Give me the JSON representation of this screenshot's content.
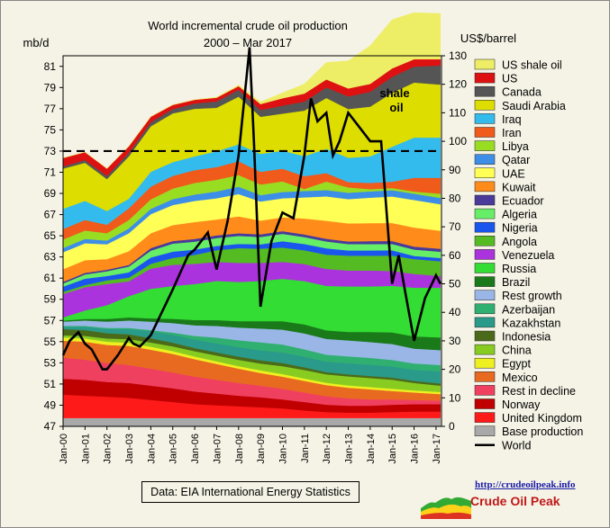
{
  "chart_data": {
    "type": "area",
    "title": "World incremental crude oil production",
    "subtitle": "2000 – Mar 2017",
    "ylabel": "mb/d",
    "y2label": "US$/barrel",
    "ylim": [
      47,
      82
    ],
    "y2lim": [
      0,
      130
    ],
    "yticks": [
      47,
      49,
      51,
      53,
      55,
      57,
      59,
      61,
      63,
      65,
      67,
      69,
      71,
      73,
      75,
      77,
      79,
      81
    ],
    "y2ticks": [
      0,
      10,
      20,
      30,
      40,
      50,
      60,
      70,
      80,
      90,
      100,
      110,
      120,
      130
    ],
    "xticks": [
      "Jan-00",
      "Jan-01",
      "Jan-02",
      "Jan-03",
      "Jan-04",
      "Jan-05",
      "Jan-06",
      "Jan-07",
      "Jan-08",
      "Jan-09",
      "Jan-10",
      "Jan-11",
      "Jan-12",
      "Jan-13",
      "Jan-14",
      "Jan-15",
      "Jan-16",
      "Jan-17"
    ],
    "reference_line": {
      "value": 73,
      "style": "dashed"
    },
    "annotation": {
      "text_line1": "shale",
      "text_line2": "oil"
    },
    "source": "Data: EIA International Energy Statistics",
    "years": [
      2000,
      2001,
      2002,
      2003,
      2004,
      2005,
      2006,
      2007,
      2008,
      2009,
      2010,
      2011,
      2012,
      2013,
      2014,
      2015,
      2016,
      2017.2
    ],
    "series": [
      {
        "name": "Base production",
        "color": "#a9a9a9",
        "values": [
          47.8,
          47.8,
          47.8,
          47.8,
          47.8,
          47.8,
          47.8,
          47.8,
          47.8,
          47.8,
          47.8,
          47.8,
          47.8,
          47.8,
          47.8,
          47.8,
          47.8,
          47.8
        ]
      },
      {
        "name": "United Kingdom",
        "color": "#ff1a1a",
        "values": [
          2.2,
          2.1,
          2.0,
          1.9,
          1.7,
          1.5,
          1.3,
          1.2,
          1.1,
          1.0,
          0.9,
          0.7,
          0.55,
          0.5,
          0.5,
          0.55,
          0.6,
          0.6
        ]
      },
      {
        "name": "Norway",
        "color": "#c00000",
        "values": [
          1.5,
          1.5,
          1.4,
          1.4,
          1.35,
          1.3,
          1.2,
          1.1,
          1.0,
          0.95,
          0.85,
          0.8,
          0.7,
          0.65,
          0.65,
          0.7,
          0.7,
          0.7
        ]
      },
      {
        "name": "Rest in decline",
        "color": "#f04060",
        "values": [
          2.0,
          1.9,
          1.8,
          1.7,
          1.6,
          1.5,
          1.4,
          1.3,
          1.2,
          1.1,
          1.0,
          0.9,
          0.8,
          0.7,
          0.6,
          0.5,
          0.4,
          0.35
        ]
      },
      {
        "name": "Mexico",
        "color": "#e86a20",
        "values": [
          1.6,
          1.7,
          1.7,
          1.8,
          1.8,
          1.75,
          1.65,
          1.5,
          1.35,
          1.2,
          1.15,
          1.1,
          1.05,
          1.0,
          0.95,
          0.8,
          0.7,
          0.6
        ]
      },
      {
        "name": "Egypt",
        "color": "#eef020",
        "values": [
          0.3,
          0.3,
          0.3,
          0.3,
          0.28,
          0.26,
          0.25,
          0.24,
          0.24,
          0.24,
          0.24,
          0.23,
          0.22,
          0.22,
          0.22,
          0.21,
          0.2,
          0.2
        ]
      },
      {
        "name": "China",
        "color": "#88cc22",
        "values": [
          0.2,
          0.25,
          0.3,
          0.35,
          0.4,
          0.45,
          0.5,
          0.55,
          0.6,
          0.65,
          0.75,
          0.8,
          0.8,
          0.85,
          0.85,
          0.85,
          0.7,
          0.6
        ]
      },
      {
        "name": "Indonesia",
        "color": "#4a6a1a",
        "values": [
          0.6,
          0.55,
          0.5,
          0.45,
          0.4,
          0.35,
          0.3,
          0.3,
          0.3,
          0.3,
          0.3,
          0.25,
          0.2,
          0.2,
          0.2,
          0.2,
          0.2,
          0.2
        ]
      },
      {
        "name": "Kazakhstan",
        "color": "#2a9a8a",
        "values": [
          0.2,
          0.3,
          0.4,
          0.5,
          0.65,
          0.75,
          0.8,
          0.85,
          0.9,
          0.95,
          1.0,
          1.0,
          1.0,
          1.05,
          1.05,
          1.05,
          1.05,
          1.15
        ]
      },
      {
        "name": "Azerbaijan",
        "color": "#30b070",
        "values": [
          0.1,
          0.1,
          0.1,
          0.1,
          0.12,
          0.2,
          0.35,
          0.55,
          0.65,
          0.75,
          0.75,
          0.7,
          0.65,
          0.65,
          0.65,
          0.62,
          0.6,
          0.6
        ]
      },
      {
        "name": "Rest growth",
        "color": "#9ab6e6",
        "values": [
          0.4,
          0.5,
          0.6,
          0.7,
          0.8,
          0.9,
          1.0,
          1.1,
          1.2,
          1.3,
          1.4,
          1.5,
          1.5,
          1.5,
          1.5,
          1.5,
          1.4,
          1.4
        ]
      },
      {
        "name": "Brazil",
        "color": "#1a7a1a",
        "values": [
          0.1,
          0.15,
          0.25,
          0.3,
          0.3,
          0.4,
          0.5,
          0.55,
          0.6,
          0.7,
          0.8,
          0.85,
          0.8,
          0.8,
          0.95,
          1.1,
          1.15,
          1.2
        ]
      },
      {
        "name": "Russia",
        "color": "#33dd33",
        "values": [
          0.3,
          0.8,
          1.3,
          2.0,
          2.8,
          3.1,
          3.4,
          3.7,
          3.7,
          3.8,
          4.0,
          4.1,
          4.2,
          4.3,
          4.3,
          4.4,
          4.6,
          4.7
        ]
      },
      {
        "name": "Venezuela",
        "color": "#aa33dd",
        "values": [
          2.2,
          2.2,
          2.0,
          1.4,
          1.9,
          2.0,
          1.9,
          1.8,
          1.8,
          1.7,
          1.6,
          1.6,
          1.6,
          1.5,
          1.5,
          1.4,
          1.3,
          1.1
        ]
      },
      {
        "name": "Angola",
        "color": "#55bb22",
        "values": [
          0.2,
          0.2,
          0.35,
          0.35,
          0.45,
          0.65,
          0.85,
          1.1,
          1.4,
          1.35,
          1.35,
          1.3,
          1.35,
          1.4,
          1.4,
          1.45,
          1.4,
          1.4
        ]
      },
      {
        "name": "Nigeria",
        "color": "#1a56ee",
        "values": [
          0.5,
          0.6,
          0.4,
          0.5,
          0.6,
          0.6,
          0.5,
          0.4,
          0.4,
          0.4,
          0.6,
          0.6,
          0.6,
          0.5,
          0.5,
          0.5,
          0.3,
          0.3
        ]
      },
      {
        "name": "Algeria",
        "color": "#66ee66",
        "values": [
          0.3,
          0.4,
          0.45,
          0.55,
          0.65,
          0.75,
          0.75,
          0.75,
          0.75,
          0.7,
          0.7,
          0.65,
          0.65,
          0.6,
          0.6,
          0.6,
          0.6,
          0.6
        ]
      },
      {
        "name": "Ecuador",
        "color": "#4a3a9a",
        "values": [
          0.15,
          0.15,
          0.15,
          0.15,
          0.25,
          0.25,
          0.25,
          0.25,
          0.25,
          0.25,
          0.25,
          0.25,
          0.25,
          0.25,
          0.28,
          0.28,
          0.28,
          0.28
        ]
      },
      {
        "name": "Kuwait",
        "color": "#ff8c1a",
        "values": [
          1.2,
          1.2,
          1.0,
          1.3,
          1.4,
          1.5,
          1.6,
          1.5,
          1.6,
          1.3,
          1.3,
          1.5,
          1.7,
          1.7,
          1.7,
          1.7,
          1.8,
          1.7
        ]
      },
      {
        "name": "UAE",
        "color": "#ffff55",
        "values": [
          1.6,
          1.6,
          1.4,
          1.7,
          1.8,
          1.9,
          2.0,
          2.0,
          2.1,
          1.8,
          1.8,
          2.0,
          2.3,
          2.3,
          2.4,
          2.5,
          2.6,
          2.5
        ]
      },
      {
        "name": "Qatar",
        "color": "#3d8ee6",
        "values": [
          0.4,
          0.4,
          0.35,
          0.45,
          0.5,
          0.55,
          0.6,
          0.65,
          0.7,
          0.6,
          0.6,
          0.6,
          0.6,
          0.6,
          0.6,
          0.6,
          0.6,
          0.6
        ]
      },
      {
        "name": "Libya",
        "color": "#99dd22",
        "values": [
          0.8,
          0.8,
          0.7,
          0.8,
          0.9,
          1.0,
          1.1,
          1.1,
          1.1,
          1.0,
          1.0,
          0.2,
          0.8,
          0.5,
          0.2,
          0.2,
          0.2,
          0.4
        ]
      },
      {
        "name": "Iran",
        "color": "#f05a1a",
        "values": [
          1.0,
          1.0,
          0.8,
          1.1,
          1.2,
          1.2,
          1.2,
          1.2,
          1.3,
          1.2,
          1.2,
          1.2,
          0.8,
          0.5,
          0.6,
          0.6,
          1.3,
          1.5
        ]
      },
      {
        "name": "Iraq",
        "color": "#33bbee",
        "values": [
          1.9,
          1.8,
          1.3,
          0.9,
          1.4,
          1.3,
          1.3,
          1.5,
          1.6,
          1.7,
          1.7,
          1.9,
          2.3,
          2.3,
          2.5,
          3.3,
          3.8,
          3.8
        ]
      },
      {
        "name": "Saudi Arabia",
        "color": "#dddd00",
        "values": [
          3.8,
          3.6,
          3.0,
          4.0,
          4.3,
          4.6,
          4.5,
          4.1,
          4.5,
          3.5,
          3.5,
          4.3,
          4.8,
          4.6,
          4.7,
          5.1,
          5.2,
          5.0
        ]
      },
      {
        "name": "Canada",
        "color": "#555555",
        "values": [
          0.2,
          0.25,
          0.3,
          0.35,
          0.4,
          0.4,
          0.5,
          0.6,
          0.65,
          0.65,
          0.75,
          0.85,
          1.0,
          1.2,
          1.4,
          1.5,
          1.5,
          1.8
        ]
      },
      {
        "name": "US",
        "color": "#dd1111",
        "values": [
          0.8,
          0.75,
          0.7,
          0.6,
          0.5,
          0.4,
          0.35,
          0.35,
          0.35,
          0.55,
          0.7,
          0.75,
          0.75,
          0.75,
          0.75,
          0.8,
          0.7,
          0.6
        ]
      },
      {
        "name": "US shale oil",
        "color": "#eeee66",
        "values": [
          0,
          0,
          0,
          0,
          0,
          0,
          0,
          0.05,
          0.1,
          0.2,
          0.5,
          0.9,
          1.6,
          2.6,
          3.6,
          4.6,
          4.4,
          4.3
        ]
      }
    ],
    "world_price": {
      "name": "World",
      "color": "#000000",
      "x": [
        2000,
        2000.3,
        2000.7,
        2001,
        2001.3,
        2001.8,
        2002,
        2002.5,
        2003,
        2003.2,
        2003.5,
        2004,
        2004.5,
        2005,
        2005.7,
        2006,
        2006.6,
        2007,
        2007.5,
        2008,
        2008.5,
        2008.7,
        2009,
        2009.5,
        2010,
        2010.5,
        2011,
        2011.3,
        2011.6,
        2012,
        2012.3,
        2012.6,
        2013,
        2013.5,
        2014,
        2014.5,
        2015,
        2015.3,
        2015.6,
        2016,
        2016.5,
        2017,
        2017.2
      ],
      "y": [
        25,
        30,
        33,
        29,
        27,
        20,
        20,
        25,
        31,
        29,
        28,
        32,
        40,
        48,
        60,
        62,
        68,
        55,
        72,
        95,
        133,
        100,
        42,
        65,
        75,
        73,
        95,
        115,
        107,
        110,
        95,
        100,
        110,
        105,
        100,
        100,
        50,
        60,
        47,
        30,
        45,
        53,
        50
      ]
    }
  },
  "legend": {
    "entries": [
      {
        "label": "US shale oil",
        "color": "#eeee66"
      },
      {
        "label": "US",
        "color": "#dd1111"
      },
      {
        "label": "Canada",
        "color": "#555555"
      },
      {
        "label": "Saudi Arabia",
        "color": "#dddd00"
      },
      {
        "label": "Iraq",
        "color": "#33bbee"
      },
      {
        "label": "Iran",
        "color": "#f05a1a"
      },
      {
        "label": "Libya",
        "color": "#99dd22"
      },
      {
        "label": "Qatar",
        "color": "#3d8ee6"
      },
      {
        "label": "UAE",
        "color": "#ffff55"
      },
      {
        "label": "Kuwait",
        "color": "#ff8c1a"
      },
      {
        "label": "Ecuador",
        "color": "#4a3a9a"
      },
      {
        "label": "Algeria",
        "color": "#66ee66"
      },
      {
        "label": "Nigeria",
        "color": "#1a56ee"
      },
      {
        "label": "Angola",
        "color": "#55bb22"
      },
      {
        "label": "Venezuela",
        "color": "#aa33dd"
      },
      {
        "label": "Russia",
        "color": "#33dd33"
      },
      {
        "label": "Brazil",
        "color": "#1a7a1a"
      },
      {
        "label": "Rest growth",
        "color": "#9ab6e6"
      },
      {
        "label": "Azerbaijan",
        "color": "#30b070"
      },
      {
        "label": "Kazakhstan",
        "color": "#2a9a8a"
      },
      {
        "label": "Indonesia",
        "color": "#4a6a1a"
      },
      {
        "label": "China",
        "color": "#88cc22"
      },
      {
        "label": "Egypt",
        "color": "#eef020"
      },
      {
        "label": "Mexico",
        "color": "#e86a20"
      },
      {
        "label": "Rest in decline",
        "color": "#f04060"
      },
      {
        "label": "Norway",
        "color": "#c00000"
      },
      {
        "label": "United Kingdom",
        "color": "#ff1a1a"
      },
      {
        "label": "Base production",
        "color": "#a9a9a9"
      },
      {
        "label": "World",
        "color": "#000000",
        "is_line": true
      }
    ]
  },
  "logo": {
    "url_text": "http://crudeoilpeak.info",
    "name": "Crude Oil Peak"
  }
}
